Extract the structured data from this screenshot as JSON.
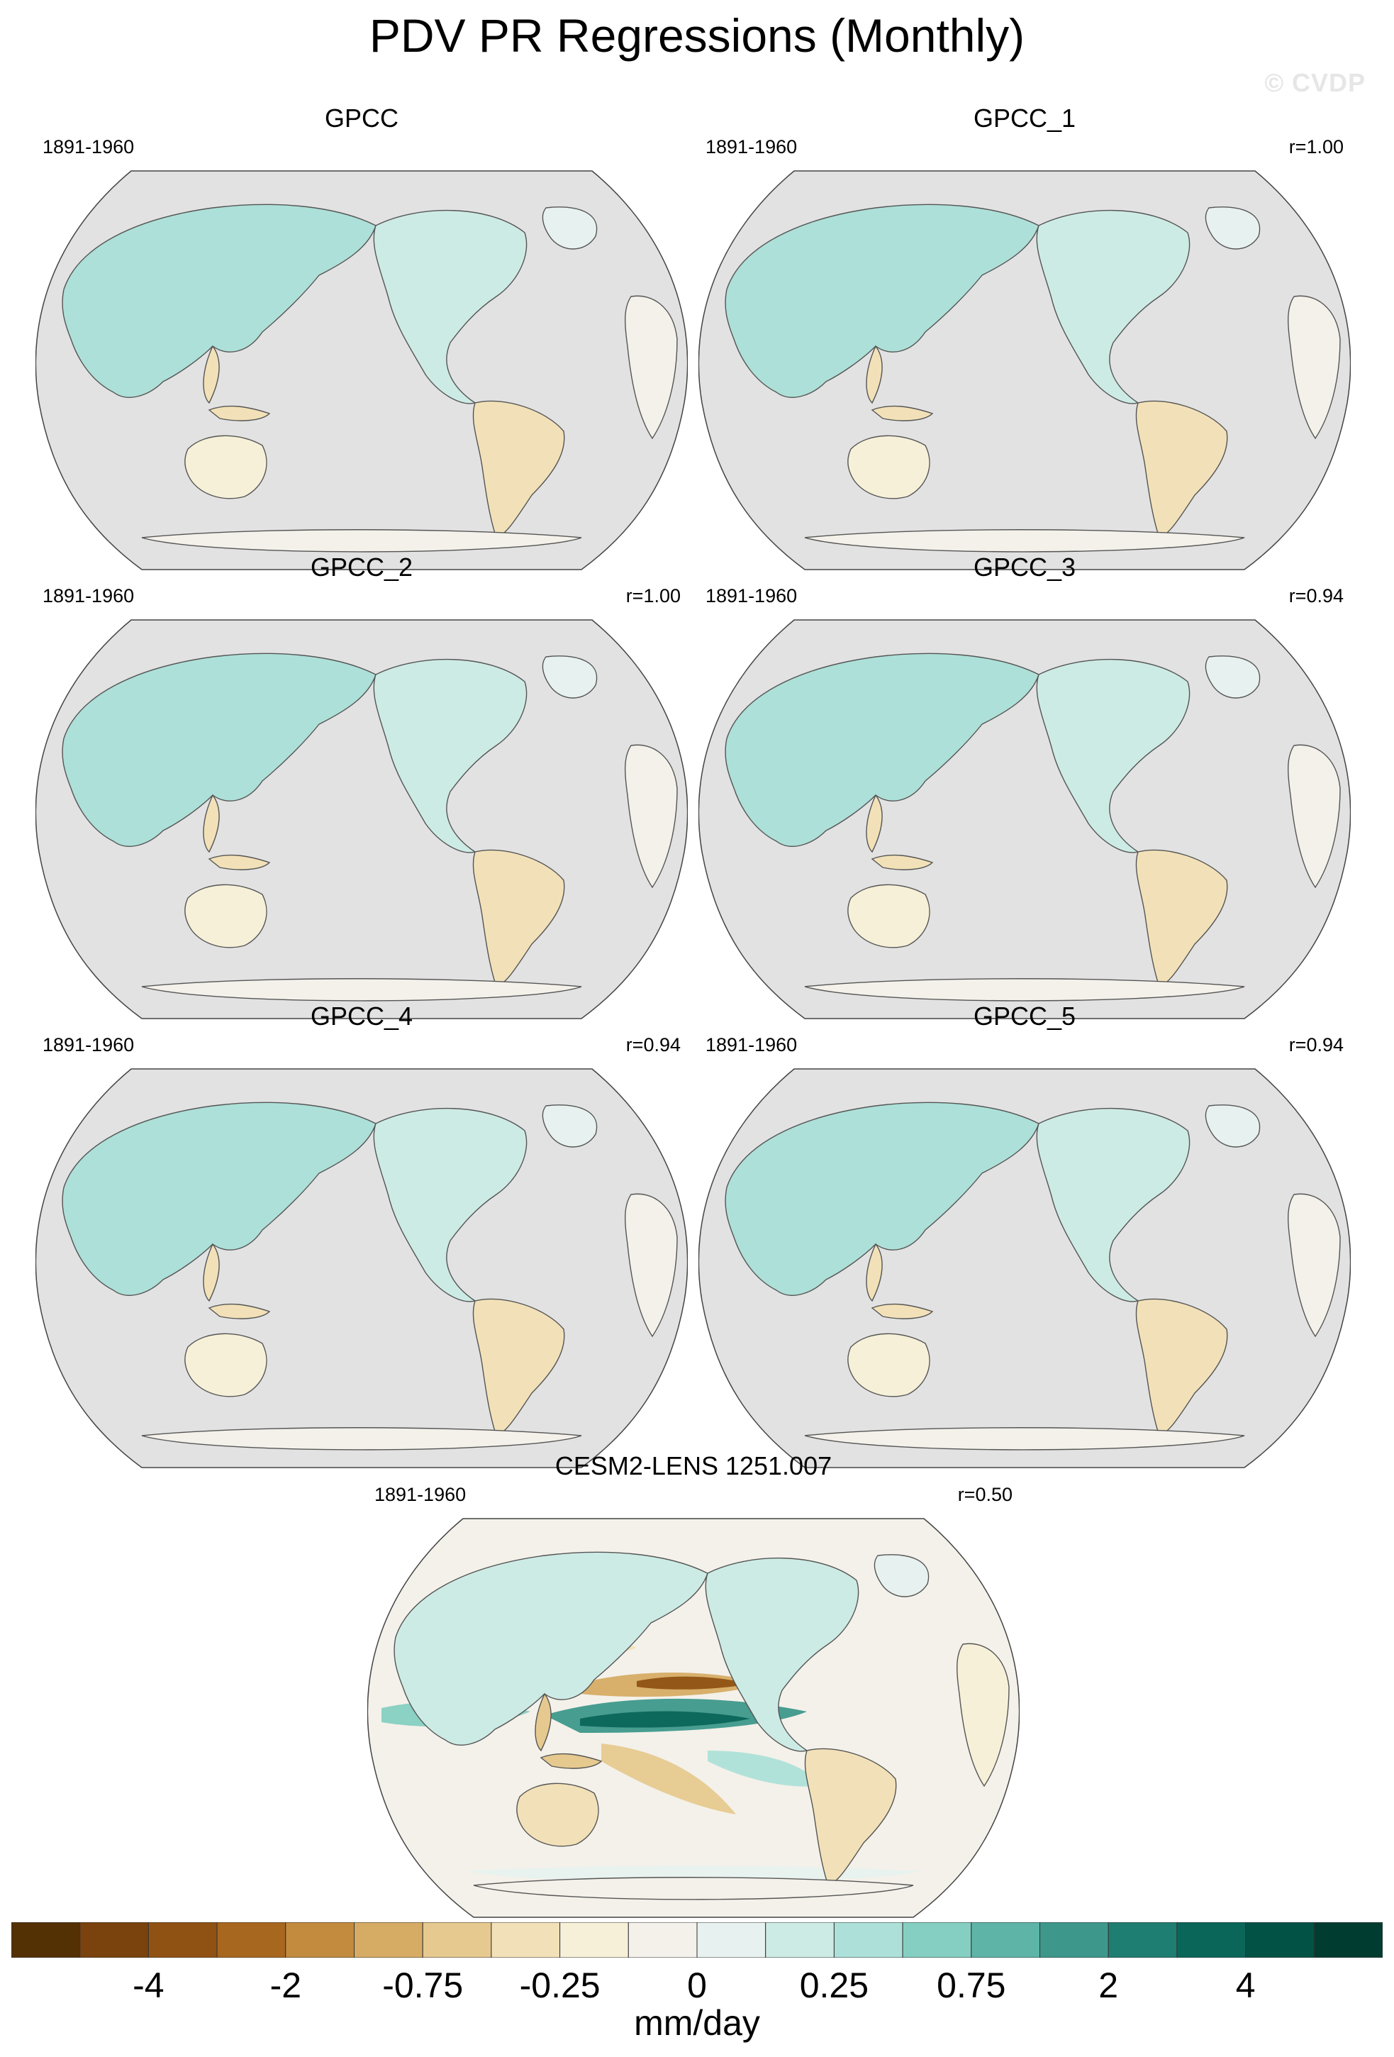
{
  "page": {
    "title": "PDV PR Regressions (Monthly)",
    "watermark": "© CVDP"
  },
  "chart_data": {
    "type": "heatmap",
    "projection": "Robinson (Pacific-centered)",
    "units": "mm/day",
    "land_mask_color": "#e2e2e2",
    "panels": [
      {
        "title": "GPCC",
        "period": "1891-1960",
        "pattern_corr": ""
      },
      {
        "title": "GPCC_1",
        "period": "1891-1960",
        "pattern_corr": "r=1.00"
      },
      {
        "title": "GPCC_2",
        "period": "1891-1960",
        "pattern_corr": "r=1.00"
      },
      {
        "title": "GPCC_3",
        "period": "1891-1960",
        "pattern_corr": "r=0.94"
      },
      {
        "title": "GPCC_4",
        "period": "1891-1960",
        "pattern_corr": "r=0.94"
      },
      {
        "title": "GPCC_5",
        "period": "1891-1960",
        "pattern_corr": "r=0.94"
      },
      {
        "title": "CESM2-LENS 1251.007",
        "period": "1891-1960",
        "pattern_corr": "r=0.50"
      }
    ],
    "colorbar": {
      "colors": [
        "#543005",
        "#7a420c",
        "#8f5213",
        "#a8671f",
        "#c28b3d",
        "#d6ac65",
        "#e6c98f",
        "#f2e1b8",
        "#f6f0d8",
        "#f4f1ea",
        "#e7f1ef",
        "#cdebe5",
        "#ade0d8",
        "#85cfc2",
        "#5eb5a7",
        "#3d988b",
        "#1f7e72",
        "#0b665a",
        "#025246",
        "#003c30"
      ],
      "labels": [
        "-4",
        "-2",
        "-0.75",
        "-0.25",
        "0",
        "0.25",
        "0.75",
        "2",
        "4"
      ]
    }
  }
}
